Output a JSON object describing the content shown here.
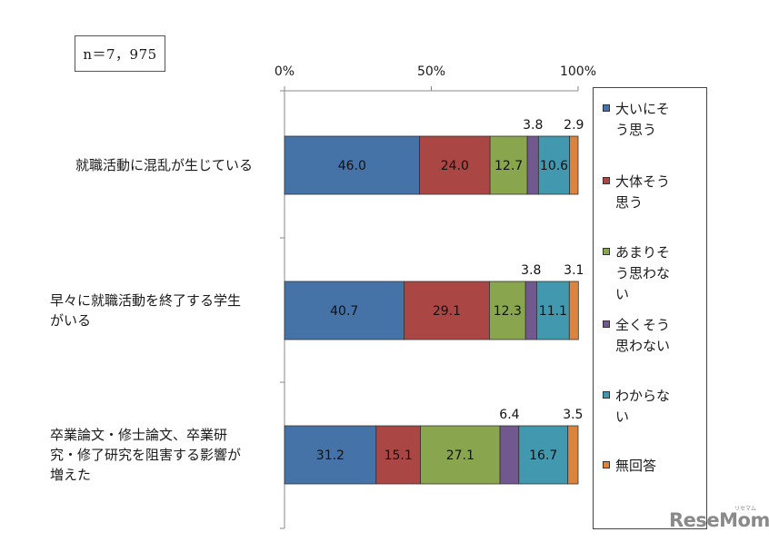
{
  "sample_label": "n＝7，975",
  "watermark": {
    "text": "ReseMom",
    "kana": "リセマム"
  },
  "chart_data": {
    "type": "bar",
    "orientation": "horizontal",
    "stacked": "percent",
    "categories": [
      "就職活動に混乱が生じている",
      "早々に就職活動を終了する学生がいる",
      "卒業論文・修士論文、卒業研究・修了研究を阻害する影響が増えた"
    ],
    "category_lines": [
      [
        "就職活動に混乱が生じている"
      ],
      [
        "早々に就職活動を終了する学生",
        "がいる"
      ],
      [
        "卒業論文・修士論文、卒業研",
        "究・修了研究を阻害する影響が",
        "増えた"
      ]
    ],
    "series": [
      {
        "name": "大いにそう思う",
        "name_lines": [
          "大いにそ",
          "う思う"
        ],
        "color": "#4572a7",
        "values": [
          46.0,
          40.7,
          31.2
        ],
        "labels": [
          "46.0",
          "40.7",
          "31.2"
        ]
      },
      {
        "name": "大体そう思う",
        "name_lines": [
          "大体そう",
          "思う"
        ],
        "color": "#aa4643",
        "values": [
          24.0,
          29.1,
          15.1
        ],
        "labels": [
          "24.0",
          "29.1",
          "15.1"
        ]
      },
      {
        "name": "あまりそう思わない",
        "name_lines": [
          "あまりそ",
          "う思わな",
          "い"
        ],
        "color": "#89a54e",
        "values": [
          12.7,
          12.3,
          27.1
        ],
        "labels": [
          "12.7",
          "12.3",
          "27.1"
        ]
      },
      {
        "name": "全くそう思わない",
        "name_lines": [
          "全くそう",
          "思わない"
        ],
        "color": "#71588f",
        "values": [
          3.8,
          3.8,
          6.4
        ],
        "labels": [
          "3.8",
          "3.8",
          "6.4"
        ]
      },
      {
        "name": "わからない",
        "name_lines": [
          "わからな",
          "い"
        ],
        "color": "#4198af",
        "values": [
          10.6,
          11.1,
          16.7
        ],
        "labels": [
          "10.6",
          "11.1",
          "16.7"
        ]
      },
      {
        "name": "無回答",
        "name_lines": [
          "無回答"
        ],
        "color": "#db843d",
        "values": [
          2.9,
          3.1,
          3.5
        ],
        "labels": [
          "2.9",
          "3.1",
          "3.5"
        ]
      }
    ],
    "x_ticks": [
      "0%",
      "50%",
      "100%"
    ],
    "xlim": [
      0,
      100
    ],
    "legend_position": "right",
    "grid": false
  }
}
